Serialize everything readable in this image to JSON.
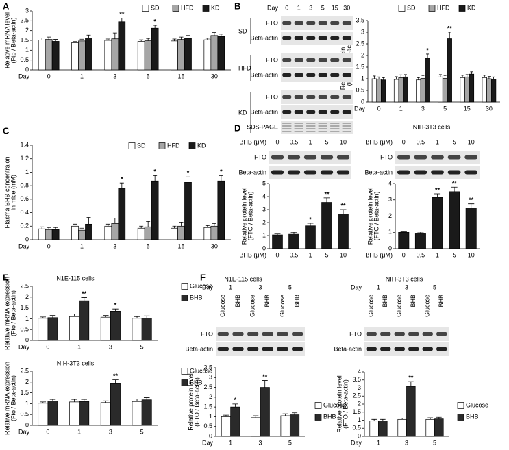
{
  "panels": [
    "A",
    "B",
    "C",
    "D",
    "E",
    "F"
  ],
  "chart_data": [
    {
      "type": "bar",
      "ylabel": [
        "Relative mRNA level",
        "(Fto / Beta-actin)"
      ],
      "xlabel": "Day",
      "categories": [
        "0",
        "1",
        "3",
        "5",
        "15",
        "30"
      ],
      "series": [
        {
          "name": "SD",
          "color": "#ffffff",
          "values": [
            1.52,
            1.38,
            1.5,
            1.45,
            1.47,
            1.53
          ],
          "errors": [
            0.1,
            0.06,
            0.07,
            0.08,
            0.1,
            0.08
          ]
        },
        {
          "name": "HFD",
          "color": "#a6a6a6",
          "values": [
            1.55,
            1.47,
            1.58,
            1.48,
            1.55,
            1.75
          ],
          "errors": [
            0.12,
            0.09,
            0.3,
            0.12,
            0.12,
            0.15
          ]
        },
        {
          "name": "KD",
          "color": "#1a1a1a",
          "values": [
            1.45,
            1.62,
            2.45,
            2.12,
            1.6,
            1.7
          ],
          "errors": [
            0.1,
            0.15,
            0.18,
            0.15,
            0.15,
            0.12
          ],
          "annotations": [
            null,
            null,
            "**",
            "*",
            null,
            null
          ]
        }
      ],
      "ylim": [
        0,
        3
      ],
      "yticks": [
        0,
        0.5,
        1,
        1.5,
        2,
        2.5,
        3
      ],
      "legend": "top"
    },
    {
      "type": "bar",
      "ylabel": [
        "Relative protein level",
        "(FTO / Beta-actin)"
      ],
      "xlabel": "Day",
      "categories": [
        "0",
        "1",
        "3",
        "5",
        "15",
        "30"
      ],
      "series": [
        {
          "name": "SD",
          "color": "#ffffff",
          "values": [
            1.0,
            0.97,
            0.95,
            1.08,
            1.05,
            1.05
          ],
          "errors": [
            0.12,
            0.12,
            0.1,
            0.1,
            0.1,
            0.1
          ]
        },
        {
          "name": "HFD",
          "color": "#a6a6a6",
          "values": [
            0.98,
            1.05,
            1.02,
            1.02,
            1.08,
            1.0
          ],
          "errors": [
            0.1,
            0.12,
            0.12,
            0.12,
            0.1,
            0.1
          ]
        },
        {
          "name": "KD",
          "color": "#1a1a1a",
          "values": [
            0.95,
            1.08,
            1.88,
            2.72,
            1.2,
            0.98
          ],
          "errors": [
            0.1,
            0.1,
            0.18,
            0.28,
            0.1,
            0.1
          ],
          "annotations": [
            null,
            null,
            "*",
            "**",
            null,
            null
          ]
        }
      ],
      "ylim": [
        0,
        3.5
      ],
      "yticks": [
        0,
        0.5,
        1,
        1.5,
        2,
        2.5,
        3,
        3.5
      ],
      "legend": "top"
    },
    {
      "type": "bar",
      "ylabel": [
        "Plasma BHB concentraion",
        "in mice (mM)"
      ],
      "xlabel": "Day",
      "categories": [
        "0",
        "1",
        "3",
        "5",
        "15",
        "30"
      ],
      "series": [
        {
          "name": "SD",
          "color": "#ffffff",
          "values": [
            0.16,
            0.2,
            0.2,
            0.17,
            0.17,
            0.18
          ],
          "errors": [
            0.03,
            0.03,
            0.03,
            0.03,
            0.03,
            0.03
          ]
        },
        {
          "name": "HFD",
          "color": "#a6a6a6",
          "values": [
            0.15,
            0.14,
            0.24,
            0.19,
            0.2,
            0.2
          ],
          "errors": [
            0.03,
            0.03,
            0.08,
            0.08,
            0.06,
            0.04
          ]
        },
        {
          "name": "KD",
          "color": "#1a1a1a",
          "values": [
            0.15,
            0.23,
            0.76,
            0.87,
            0.85,
            0.87
          ],
          "errors": [
            0.03,
            0.1,
            0.08,
            0.08,
            0.08,
            0.08
          ],
          "annotations": [
            null,
            null,
            "*",
            "*",
            "*",
            "*"
          ]
        }
      ],
      "ylim": [
        0,
        1.4
      ],
      "yticks": [
        0,
        0.2,
        0.4,
        0.6,
        0.8,
        1,
        1.2,
        1.4
      ],
      "legend": "top"
    },
    {
      "type": "bar",
      "title": "N1E-115 cells",
      "ylabel": [
        "Relative protein level",
        "(FTO / Beta-actin)"
      ],
      "xlabel": "BHB (μM)",
      "categories": [
        "0",
        "0.5",
        "1",
        "5",
        "10"
      ],
      "series": [
        {
          "name": "BHB",
          "color": "#1a1a1a",
          "values": [
            1.05,
            1.15,
            1.75,
            3.55,
            2.65
          ],
          "errors": [
            0.12,
            0.1,
            0.2,
            0.35,
            0.35
          ],
          "annotations": [
            null,
            null,
            "*",
            "**",
            "**"
          ]
        }
      ],
      "ylim": [
        0,
        5
      ],
      "yticks": [
        0,
        1,
        2,
        3,
        4,
        5
      ]
    },
    {
      "type": "bar",
      "title": "NIH-3T3 cells",
      "ylabel": [
        "Relative protein level",
        "(FTO / Beta-actin)"
      ],
      "xlabel": "BHB (μM)",
      "categories": [
        "0",
        "0.5",
        "1",
        "5",
        "10"
      ],
      "series": [
        {
          "name": "BHB",
          "color": "#1a1a1a",
          "values": [
            1.0,
            0.95,
            3.15,
            3.5,
            2.5
          ],
          "errors": [
            0.08,
            0.06,
            0.22,
            0.28,
            0.25
          ],
          "annotations": [
            null,
            null,
            "**",
            "**",
            "**"
          ]
        }
      ],
      "ylim": [
        0,
        4
      ],
      "yticks": [
        0,
        1,
        2,
        3,
        4
      ]
    },
    {
      "type": "bar",
      "title": "N1E-115 cells",
      "ylabel": [
        "Relative mRNA expression",
        "(Fto / Beta-actin)"
      ],
      "xlabel": "Day",
      "categories": [
        "0",
        "1",
        "3",
        "5"
      ],
      "series": [
        {
          "name": "Glucose",
          "color": "#ffffff",
          "values": [
            1.02,
            1.1,
            1.07,
            1.02
          ],
          "errors": [
            0.06,
            0.12,
            0.08,
            0.08
          ]
        },
        {
          "name": "BHB",
          "color": "#2a2a2a",
          "values": [
            1.05,
            1.83,
            1.35,
            1.03
          ],
          "errors": [
            0.1,
            0.15,
            0.1,
            0.1
          ],
          "annotations": [
            null,
            "**",
            "*",
            null
          ]
        }
      ],
      "ylim": [
        0,
        2.5
      ],
      "yticks": [
        0,
        0.5,
        1,
        1.5,
        2,
        2.5
      ],
      "legend": "right"
    },
    {
      "type": "bar",
      "title": "NIH-3T3 cells",
      "ylabel": [
        "Relative mRNA expression",
        "(Fto / Beta-actin)"
      ],
      "xlabel": "Day",
      "categories": [
        "0",
        "1",
        "3",
        "5"
      ],
      "series": [
        {
          "name": "Glucose",
          "color": "#ffffff",
          "values": [
            1.02,
            1.08,
            1.05,
            1.1
          ],
          "errors": [
            0.06,
            0.12,
            0.08,
            0.12
          ]
        },
        {
          "name": "BHB",
          "color": "#2a2a2a",
          "values": [
            1.12,
            1.1,
            1.95,
            1.18
          ],
          "errors": [
            0.08,
            0.1,
            0.15,
            0.1
          ],
          "annotations": [
            null,
            null,
            "**",
            null
          ]
        }
      ],
      "ylim": [
        0,
        2.5
      ],
      "yticks": [
        0,
        0.5,
        1,
        1.5,
        2,
        2.5
      ],
      "legend": "right"
    },
    {
      "type": "bar",
      "title": "N1E-115 cells",
      "ylabel": [
        "Relative protein level",
        "(FTO / Beta-actin)"
      ],
      "xlabel": "Day",
      "categories": [
        "1",
        "3",
        "5"
      ],
      "series": [
        {
          "name": "Glucose",
          "color": "#ffffff",
          "values": [
            1.0,
            0.95,
            1.05
          ],
          "errors": [
            0.08,
            0.1,
            0.1
          ]
        },
        {
          "name": "BHB",
          "color": "#2a2a2a",
          "values": [
            1.5,
            2.5,
            1.1
          ],
          "errors": [
            0.15,
            0.35,
            0.1
          ],
          "annotations": [
            "*",
            "**",
            null
          ]
        }
      ],
      "ylim": [
        0,
        3.5
      ],
      "yticks": [
        0,
        0.5,
        1,
        1.5,
        2,
        2.5,
        3,
        3.5
      ],
      "legend": "right"
    },
    {
      "type": "bar",
      "title": "NIH-3T3 cells",
      "ylabel": [
        "Relative protein level",
        "(FTO / Beta-actin)"
      ],
      "xlabel": "Day",
      "categories": [
        "1",
        "3",
        "5"
      ],
      "series": [
        {
          "name": "Glucose",
          "color": "#ffffff",
          "values": [
            0.95,
            1.05,
            1.05
          ],
          "errors": [
            0.1,
            0.08,
            0.1
          ]
        },
        {
          "name": "BHB",
          "color": "#2a2a2a",
          "values": [
            0.95,
            3.1,
            1.08
          ],
          "errors": [
            0.1,
            0.3,
            0.1
          ],
          "annotations": [
            null,
            "**",
            null
          ]
        }
      ],
      "ylim": [
        0,
        4
      ],
      "yticks": [
        0,
        0.5,
        1,
        1.5,
        2,
        2.5,
        3,
        3.5,
        4
      ],
      "legend": "right"
    }
  ],
  "blots": [
    {
      "groups": [
        {
          "name": "SD",
          "rows": [
            "FTO",
            "Beta-actin"
          ]
        },
        {
          "name": "HFD",
          "rows": [
            "FTO",
            "Beta-actin"
          ]
        },
        {
          "name": "KD",
          "rows": [
            "FTO",
            "Beta-actin",
            "SDS-PAGE"
          ]
        }
      ]
    },
    {
      "rows": [
        "FTO",
        "Beta-actin"
      ]
    },
    {
      "rows": [
        "FTO",
        "Beta-actin"
      ]
    },
    {
      "rows": [
        "FTO",
        "Beta-actin"
      ]
    },
    {
      "rows": [
        "FTO",
        "Beta-actin"
      ]
    }
  ]
}
